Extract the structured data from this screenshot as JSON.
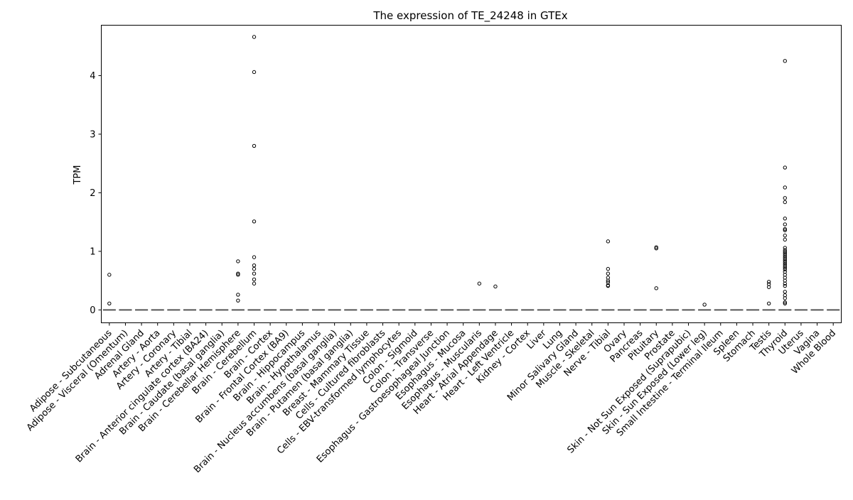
{
  "chart_data": {
    "type": "box",
    "title": "The expression of TE_24248 in GTEx",
    "xlabel": "",
    "ylabel": "TPM",
    "ylim": [
      -0.22,
      4.86
    ],
    "yticks": [
      0,
      1,
      2,
      3,
      4
    ],
    "grid": false,
    "categories": [
      "Adipose - Subcutaneous",
      "Adipose - Visceral (Omentum)",
      "Adrenal Gland",
      "Artery - Aorta",
      "Artery - Coronary",
      "Artery - Tibial",
      "Brain - Anterior cingulate cortex (BA24)",
      "Brain - Caudate (basal ganglia)",
      "Brain - Cerebellar Hemisphere",
      "Brain - Cerebellum",
      "Brain - Cortex",
      "Brain - Frontal Cortex (BA9)",
      "Brain - Hippocampus",
      "Brain - Hypothalamus",
      "Brain - Nucleus accumbens (basal ganglia)",
      "Brain - Putamen (basal ganglia)",
      "Breast - Mammary Tissue",
      "Cells - Cultured fibroblasts",
      "Cells - EBV-transformed lymphocytes",
      "Colon - Sigmoid",
      "Colon - Transverse",
      "Esophagus - Gastroesophageal Junction",
      "Esophagus - Mucosa",
      "Esophagus - Muscularis",
      "Heart - Atrial Appendage",
      "Heart - Left Ventricle",
      "Kidney - Cortex",
      "Liver",
      "Lung",
      "Minor Salivary Gland",
      "Muscle - Skeletal",
      "Nerve - Tibial",
      "Ovary",
      "Pancreas",
      "Pituitary",
      "Prostate",
      "Skin - Not Sun Exposed (Suprapubic)",
      "Skin - Sun Exposed (Lower leg)",
      "Small Intestine - Terminal Ileum",
      "Spleen",
      "Stomach",
      "Testis",
      "Thyroid",
      "Uterus",
      "Vagina",
      "Whole Blood"
    ],
    "median": [
      0,
      0,
      0,
      0,
      0,
      0,
      0,
      0,
      0,
      0,
      0,
      0,
      0,
      0,
      0,
      0,
      0,
      0,
      0,
      0,
      0,
      0,
      0,
      0,
      0,
      0,
      0,
      0,
      0,
      0,
      0,
      0,
      0,
      0,
      0,
      0,
      0,
      0,
      0,
      0,
      0,
      0,
      0,
      0,
      0,
      0
    ],
    "outliers": [
      [
        0.6,
        0.11
      ],
      [],
      [],
      [],
      [],
      [],
      [],
      [],
      [
        0.83,
        0.62,
        0.6,
        0.26,
        0.16
      ],
      [
        4.66,
        4.06,
        2.8,
        1.51,
        0.9,
        0.76,
        0.7,
        0.62,
        0.52,
        0.45
      ],
      [],
      [],
      [],
      [],
      [],
      [],
      [],
      [],
      [],
      [],
      [],
      [],
      [],
      [
        0.45
      ],
      [
        0.4
      ],
      [],
      [],
      [],
      [],
      [],
      [],
      [
        1.17,
        0.7,
        0.62,
        0.55,
        0.5,
        0.47,
        0.42,
        0.41
      ],
      [],
      [],
      [
        1.07,
        1.05,
        0.37
      ],
      [],
      [],
      [
        0.09
      ],
      [],
      [],
      [],
      [
        0.48,
        0.44,
        0.39,
        0.11
      ],
      [
        4.25,
        2.43,
        2.09,
        1.91,
        1.84,
        1.56,
        1.46,
        1.38,
        1.36,
        1.27,
        1.2,
        1.06,
        1.02,
        0.99,
        0.96,
        0.93,
        0.9,
        0.87,
        0.84,
        0.81,
        0.78,
        0.75,
        0.72,
        0.69,
        0.65,
        0.6,
        0.55,
        0.5,
        0.45,
        0.41,
        0.31,
        0.25,
        0.2,
        0.13,
        0.11
      ],
      [],
      [],
      []
    ]
  }
}
